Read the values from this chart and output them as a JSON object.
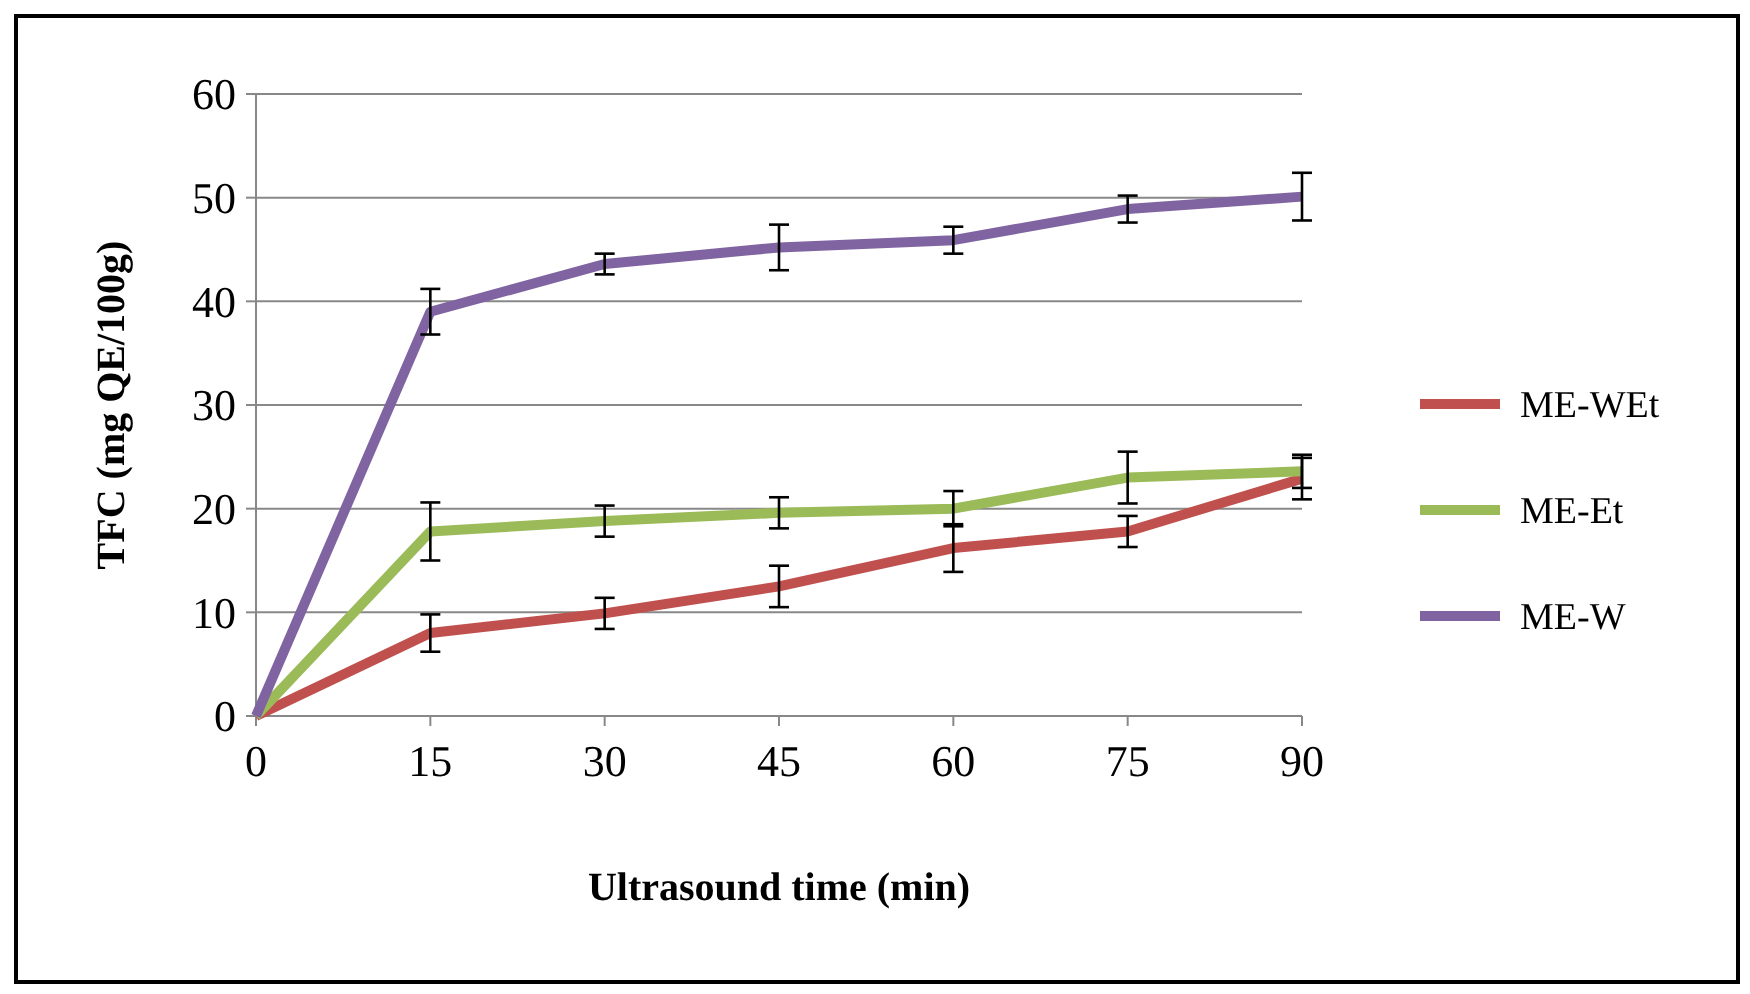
{
  "chart_data": {
    "type": "line",
    "xlabel": "Ultrasound time (min)",
    "ylabel": "TFC (mg QE/100g)",
    "x": [
      0,
      15,
      30,
      45,
      60,
      75,
      90
    ],
    "xlim": [
      0,
      90
    ],
    "xticks": [
      0,
      15,
      30,
      45,
      60,
      75,
      90
    ],
    "ylim": [
      0,
      60
    ],
    "yticks": [
      0,
      10,
      20,
      30,
      40,
      50,
      60
    ],
    "grid": "y",
    "legend": "right",
    "marker": "none",
    "line_style": "solid",
    "series": [
      {
        "name": "ME-WEt",
        "color": "#c0504d",
        "values": [
          0,
          8,
          9.9,
          12.5,
          16.2,
          17.8,
          22.9
        ],
        "errors": [
          null,
          1.8,
          1.5,
          2,
          2.3,
          1.5,
          2
        ]
      },
      {
        "name": "ME-Et",
        "color": "#9bbb59",
        "values": [
          0,
          17.8,
          18.8,
          19.6,
          20,
          23,
          23.6
        ],
        "errors": [
          null,
          2.8,
          1.5,
          1.5,
          1.7,
          2.5,
          1.6
        ]
      },
      {
        "name": "ME-W",
        "color": "#8064a2",
        "values": [
          0,
          39,
          43.6,
          45.2,
          45.9,
          48.9,
          50.1
        ],
        "errors": [
          null,
          2.2,
          1,
          2.2,
          1.3,
          1.3,
          2.3
        ]
      }
    ]
  }
}
